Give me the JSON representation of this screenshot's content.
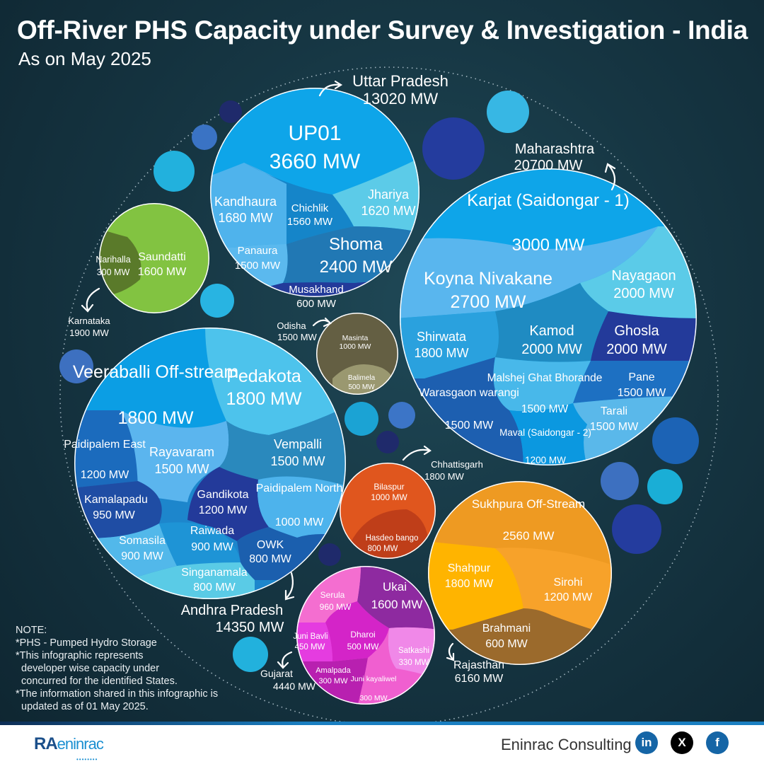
{
  "title": "Off-River PHS Capacity under Survey & Investigation - India",
  "subtitle": "As on May 2025",
  "note": {
    "heading": "NOTE:",
    "line1": "*PHS - Pumped Hydro Storage",
    "line2": "*This infographic represents",
    "line3": "developer wise capacity under",
    "line4": "concurred for the identified States.",
    "line5": "*The information shared in this infographic is",
    "line6": "updated as of 01 May 2025."
  },
  "footer": {
    "logo_ra": "RA",
    "logo_en": "eninrac",
    "brand": "Eninrac Consulting",
    "linkedin": "in",
    "x": "X",
    "facebook": "f"
  },
  "chart_data": {
    "type": "circle-packing",
    "unit": "MW",
    "states": [
      {
        "state": "Uttar Pradesh",
        "total": "13020 MW",
        "color": "#1aa3e0",
        "projects": [
          {
            "name": "UP01",
            "capacity": "3660 MW"
          },
          {
            "name": "Kandhaura",
            "capacity": "1680 MW"
          },
          {
            "name": "Chichlik",
            "capacity": "1560 MW"
          },
          {
            "name": "Jhariya",
            "capacity": "1620 MW"
          },
          {
            "name": "Panaura",
            "capacity": "1500 MW"
          },
          {
            "name": "Shoma",
            "capacity": "2400 MW"
          },
          {
            "name": "Musakhand",
            "capacity": "600 MW"
          }
        ]
      },
      {
        "state": "Maharashtra",
        "total": "20700 MW",
        "color": "#1aa3e0",
        "projects": [
          {
            "name": "Karjat (Saidongar - 1)",
            "capacity": "3000 MW"
          },
          {
            "name": "Koyna Nivakane",
            "capacity": "2700 MW"
          },
          {
            "name": "Nayagaon",
            "capacity": "2000 MW"
          },
          {
            "name": "Shirwata",
            "capacity": "1800 MW"
          },
          {
            "name": "Kamod",
            "capacity": "2000 MW"
          },
          {
            "name": "Ghosla",
            "capacity": "2000 MW"
          },
          {
            "name": "Warasgaon warangi",
            "capacity": "1500 MW"
          },
          {
            "name": "Malshej Ghat Bhorande",
            "capacity": "1500 MW"
          },
          {
            "name": "Pane",
            "capacity": "1500 MW"
          },
          {
            "name": "Tarali",
            "capacity": "1500 MW"
          },
          {
            "name": "Maval (Saidongar - 2)",
            "capacity": "1200 MW"
          }
        ]
      },
      {
        "state": "Karnataka",
        "total": "1900 MW",
        "color": "#7dbe3c",
        "projects": [
          {
            "name": "Saundatti",
            "capacity": "1600 MW"
          },
          {
            "name": "Narihalla",
            "capacity": "300 MW"
          }
        ]
      },
      {
        "state": "Odisha",
        "total": "1500 MW",
        "color": "#6b6445",
        "projects": [
          {
            "name": "Masinta",
            "capacity": "1000 MW"
          },
          {
            "name": "Balimela",
            "capacity": "500 MW"
          }
        ]
      },
      {
        "state": "Andhra Pradesh",
        "total": "14350 MW",
        "color": "#1f86cf",
        "projects": [
          {
            "name": "Veeraballi Off-stream",
            "capacity": "1800 MW"
          },
          {
            "name": "Pedakota",
            "capacity": "1800 MW"
          },
          {
            "name": "Paidipalem East",
            "capacity": "1200 MW"
          },
          {
            "name": "Rayavaram",
            "capacity": "1500 MW"
          },
          {
            "name": "Vempalli",
            "capacity": "1500 MW"
          },
          {
            "name": "Kamalapadu",
            "capacity": "950 MW"
          },
          {
            "name": "Gandikota",
            "capacity": "1200 MW"
          },
          {
            "name": "Paidipalem North",
            "capacity": "1000 MW"
          },
          {
            "name": "Somasila",
            "capacity": "900 MW"
          },
          {
            "name": "Raiwada",
            "capacity": "900 MW"
          },
          {
            "name": "OWK",
            "capacity": "800 MW"
          },
          {
            "name": "Singanamala",
            "capacity": "800 MW"
          }
        ]
      },
      {
        "state": "Chhattisgarh",
        "total": "1800 MW",
        "color": "#e05a24",
        "projects": [
          {
            "name": "Bilaspur",
            "capacity": "1000 MW"
          },
          {
            "name": "Hasdeo bango",
            "capacity": "800 MW"
          }
        ]
      },
      {
        "state": "Rajasthan",
        "total": "6160 MW",
        "color": "#f0a020",
        "projects": [
          {
            "name": "Sukhpura Off-Stream",
            "capacity": "2560 MW"
          },
          {
            "name": "Shahpur",
            "capacity": "1800 MW"
          },
          {
            "name": "Sirohi",
            "capacity": "1200 MW"
          },
          {
            "name": "Brahmani",
            "capacity": "600 MW"
          }
        ]
      },
      {
        "state": "Gujarat",
        "total": "4440 MW",
        "color": "#e32fc8",
        "projects": [
          {
            "name": "Serula",
            "capacity": "960 MW"
          },
          {
            "name": "Ukai",
            "capacity": "1600 MW"
          },
          {
            "name": "Juni Bavli",
            "capacity": "450 MW"
          },
          {
            "name": "Dharoi",
            "capacity": "500 MW"
          },
          {
            "name": "Satkashi",
            "capacity": "330 MW"
          },
          {
            "name": "Amalpada",
            "capacity": "300 MW"
          },
          {
            "name": "Juni kayaliwel",
            "capacity": "300 MW"
          }
        ]
      }
    ]
  }
}
